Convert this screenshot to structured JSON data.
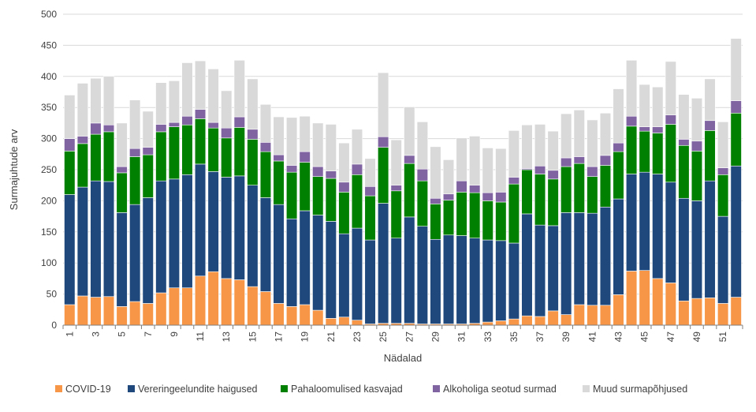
{
  "chart_data": {
    "type": "bar",
    "stacked": true,
    "title": "",
    "xlabel": "Nädalad",
    "ylabel": "Surmajuhtude arv",
    "ylim": [
      0,
      500
    ],
    "yticks": [
      0,
      50,
      100,
      150,
      200,
      250,
      300,
      350,
      400,
      450,
      500
    ],
    "grid": true,
    "legend_position": "bottom",
    "categories": [
      "1",
      "2",
      "3",
      "4",
      "5",
      "6",
      "7",
      "8",
      "9",
      "10",
      "11",
      "12",
      "13",
      "14",
      "15",
      "16",
      "17",
      "18",
      "19",
      "20",
      "21",
      "22",
      "23",
      "24",
      "25",
      "26",
      "27",
      "28",
      "29",
      "30",
      "31",
      "32",
      "33",
      "34",
      "35",
      "36",
      "37",
      "38",
      "39",
      "40",
      "41",
      "42",
      "43",
      "44",
      "45",
      "46",
      "47",
      "48",
      "49",
      "50",
      "51",
      "52"
    ],
    "x_tick_labels": [
      "1",
      "3",
      "5",
      "7",
      "9",
      "11",
      "13",
      "15",
      "17",
      "19",
      "21",
      "23",
      "25",
      "27",
      "29",
      "31",
      "33",
      "35",
      "37",
      "39",
      "41",
      "43",
      "45",
      "47",
      "49",
      "51"
    ],
    "series": [
      {
        "name": "COVID-19",
        "color": "#F79646",
        "values": [
          33,
          47,
          45,
          46,
          30,
          38,
          35,
          52,
          60,
          60,
          79,
          86,
          75,
          73,
          62,
          54,
          35,
          30,
          33,
          24,
          11,
          13,
          8,
          2,
          3,
          3,
          3,
          2,
          2,
          2,
          2,
          3,
          5,
          7,
          10,
          15,
          14,
          23,
          17,
          33,
          32,
          32,
          49,
          87,
          88,
          75,
          68,
          39,
          43,
          44,
          35,
          45
        ]
      },
      {
        "name": "Vereringeelundite haigused",
        "color": "#1F497D",
        "values": [
          177,
          175,
          187,
          185,
          151,
          156,
          170,
          180,
          175,
          182,
          180,
          161,
          163,
          167,
          163,
          151,
          159,
          141,
          151,
          153,
          156,
          134,
          148,
          135,
          193,
          137,
          171,
          157,
          136,
          143,
          142,
          137,
          132,
          129,
          122,
          164,
          147,
          137,
          164,
          148,
          148,
          158,
          154,
          156,
          158,
          168,
          162,
          165,
          157,
          188,
          140,
          211
        ]
      },
      {
        "name": "Pahaloomulised kasvajad",
        "color": "#008000",
        "values": [
          70,
          70,
          75,
          80,
          64,
          77,
          69,
          79,
          84,
          80,
          73,
          70,
          63,
          78,
          74,
          74,
          70,
          75,
          78,
          62,
          69,
          67,
          86,
          71,
          90,
          76,
          86,
          73,
          57,
          56,
          70,
          73,
          63,
          62,
          95,
          71,
          82,
          75,
          74,
          79,
          59,
          67,
          76,
          77,
          66,
          66,
          93,
          85,
          80,
          81,
          67,
          85
        ]
      },
      {
        "name": "Alkoholiga seotud surmad",
        "color": "#8064A2",
        "values": [
          20,
          12,
          18,
          11,
          10,
          13,
          12,
          12,
          7,
          14,
          15,
          9,
          16,
          17,
          16,
          15,
          10,
          11,
          17,
          16,
          12,
          16,
          17,
          15,
          17,
          9,
          13,
          19,
          9,
          10,
          18,
          12,
          13,
          16,
          11,
          2,
          13,
          14,
          14,
          11,
          16,
          16,
          14,
          16,
          7,
          10,
          15,
          10,
          16,
          16,
          11,
          20
        ]
      },
      {
        "name": "Muud surmapõhjused",
        "color": "#D9D9D9",
        "values": [
          70,
          85,
          72,
          78,
          70,
          78,
          58,
          67,
          67,
          86,
          78,
          86,
          60,
          91,
          81,
          61,
          61,
          77,
          57,
          70,
          75,
          63,
          56,
          45,
          103,
          73,
          78,
          76,
          83,
          55,
          69,
          79,
          72,
          70,
          75,
          70,
          67,
          63,
          71,
          75,
          75,
          68,
          87,
          90,
          68,
          64,
          86,
          72,
          69,
          67,
          74,
          100
        ]
      }
    ]
  }
}
